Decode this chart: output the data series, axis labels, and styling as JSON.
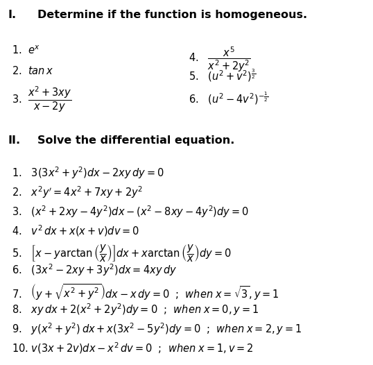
{
  "bg_color": "#ffffff",
  "figsize": [
    5.38,
    5.26
  ],
  "dpi": 100,
  "section_I_header": "I.        Determine if the function is homogeneous.",
  "section_II_header": "II.        Solve the differential equation.",
  "items_left": [
    "1.  $e^x$",
    "2.  $\\mathit{tan}\\, x$",
    "3.  $\\dfrac{x^2+3xy}{x-2y}$"
  ],
  "items_right": [
    "4.   $\\dfrac{x^5}{x^2+2y^2}$",
    "5.   $(u^2 + v^2)^{\\frac{3}{2}}$",
    "6.   $(u^2 - 4v^2)^{-\\frac{1}{2}}$"
  ],
  "items_II": [
    "1.   $3(3x^2 + y^2)dx - 2xy\\, dy = 0$",
    "2.   $x^2y' = 4x^2 + 7xy + 2y^2$",
    "3.   $(x^2 + 2xy - 4y^2)dx - (x^2 - 8xy - 4y^2)dy = 0$",
    "4.   $v^2\\, dx + x(x + v)dv = 0$",
    "5.   $\\left[x - y\\arctan\\left(\\dfrac{y}{x}\\right)\\right]dx + x\\arctan\\left(\\dfrac{y}{x}\\right)dy = 0$",
    "6.   $(3x^2 - 2xy + 3y^2)dx = 4xy\\, dy$",
    "7.   $\\left(y + \\sqrt{x^2 + y^2}\\right)dx - x\\, dy = 0$  ;  $\\mathit{when}\\; x = \\sqrt{3}, y = 1$",
    "8.   $xy\\, dx + 2(x^2 + 2y^2)dy = 0$  ;  $\\mathit{when}\\; x = 0, y = 1$",
    "9.   $y(x^2 + y^2)\\, dx + x(3x^2 - 5y^2)dy = 0$  ;  $\\mathit{when}\\; x = 2, y = 1$",
    "10. $v(3x + 2v)dx - x^2\\, dv = 0$  ;  $\\mathit{when}\\; x = 1, v = 2$"
  ]
}
